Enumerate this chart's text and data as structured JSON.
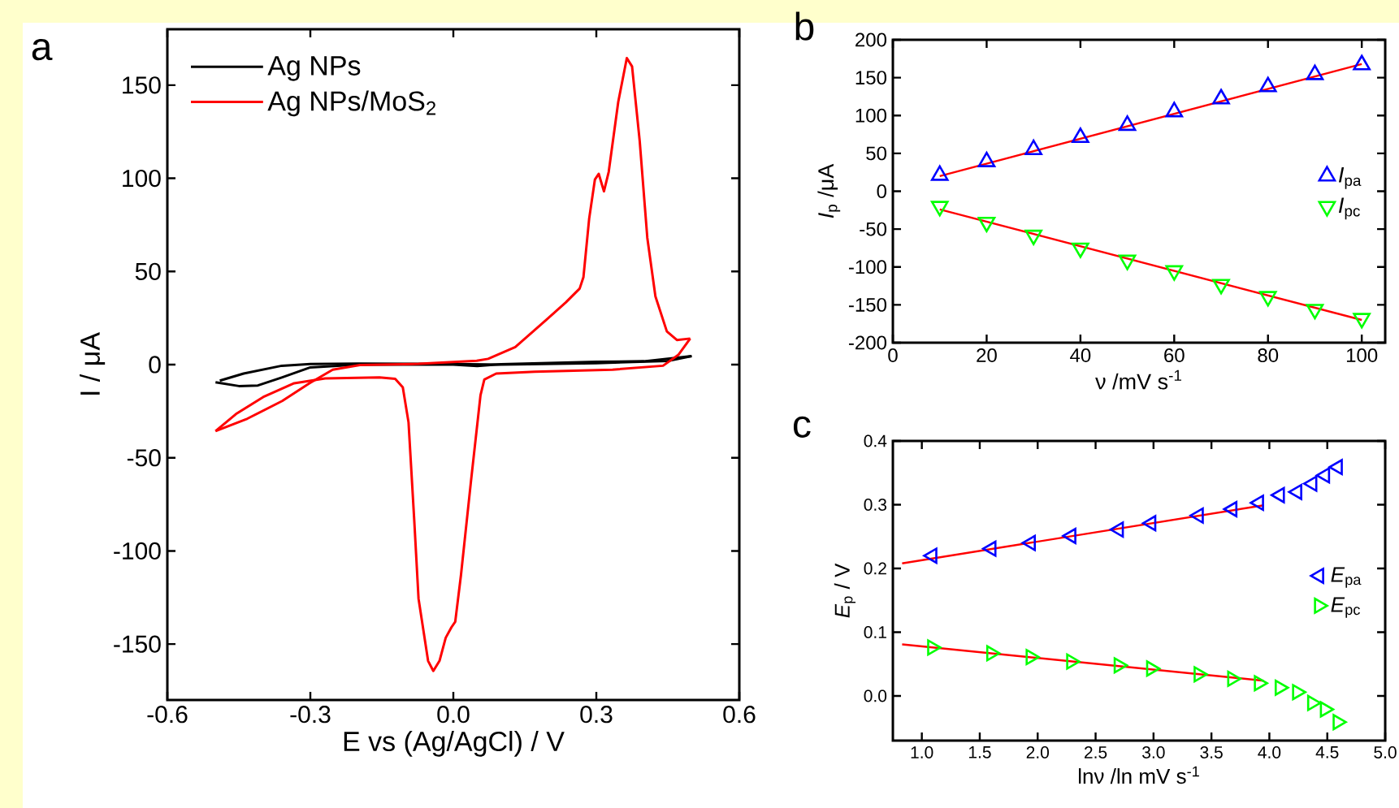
{
  "chart_data": [
    {
      "type": "line",
      "title": "a",
      "xlabel": "E vs (Ag/AgCl) / V",
      "ylabel": "I / μA",
      "legend": "top left",
      "xlim": [
        -0.6,
        0.6
      ],
      "ylim": [
        -180,
        180
      ],
      "xticks": [
        -0.6,
        -0.3,
        {
          "value": 0,
          "label": "0.0"
        },
        0.3,
        0.6
      ],
      "yticks": [
        -150,
        -100,
        -50,
        0,
        50,
        100,
        150
      ],
      "series": [
        {
          "name": "Ag NPs",
          "color": "#000000",
          "x": [
            -0.499,
            -0.45,
            -0.41,
            -0.36,
            -0.3,
            -0.2,
            0.0,
            0.05,
            0.1,
            0.3,
            0.4,
            0.5
          ],
          "values": [
            -9.5,
            -11.5,
            -11.2,
            -6.9,
            -1.5,
            0,
            0,
            -0.8,
            0.2,
            1.5,
            1.8,
            4.6
          ]
        },
        {
          "color": "#000000",
          "x": [
            0.5,
            0.45,
            0.3,
            0.1,
            0.0,
            -0.2,
            -0.3,
            -0.36,
            -0.44,
            -0.49
          ],
          "values": [
            4.6,
            2.0,
            0.8,
            0,
            0.3,
            0.5,
            0.3,
            -0.6,
            -4.8,
            -8.6
          ]
        },
        {
          "name": "Ag NPs/MoS$_{2}$",
          "color": "#ff0000",
          "x": [
            -0.499,
            -0.432,
            -0.359,
            -0.302,
            -0.253,
            -0.196,
            -0.073,
            0.049,
            0.073,
            0.13,
            0.195,
            0.236,
            0.265,
            0.273,
            0.285,
            0.297,
            0.305,
            0.316,
            0.326,
            0.346,
            0.364,
            0.375,
            0.391,
            0.407,
            0.424,
            0.448,
            0.469,
            0.497
          ],
          "values": [
            -35.7,
            -29,
            -19.5,
            -10,
            -2.7,
            -0.2,
            0.4,
            2.1,
            3.1,
            9.4,
            24,
            33.4,
            40.8,
            47,
            78.4,
            99.3,
            102.4,
            93,
            103.5,
            141,
            164.5,
            160,
            120,
            68,
            36.6,
            17.8,
            13.2,
            14
          ]
        },
        {
          "color": "#ff0000",
          "x": [
            0.497,
            0.472,
            0.44,
            0.334,
            0.171,
            0.09,
            0.065,
            0.057,
            0.037,
            0.016,
            0.004,
            -0.004,
            -0.016,
            -0.029,
            -0.042,
            -0.053,
            -0.073,
            -0.082,
            -0.094,
            -0.106,
            -0.122,
            -0.155,
            -0.269,
            -0.334,
            -0.399,
            -0.456,
            -0.499
          ],
          "values": [
            14,
            5.2,
            -0.6,
            -2.7,
            -3.8,
            -4.8,
            -8,
            -16.4,
            -62.6,
            -113,
            -138,
            -141,
            -146.6,
            -159,
            -164.4,
            -159,
            -125.6,
            -83.6,
            -31,
            -12.2,
            -7.6,
            -6.9,
            -7.4,
            -10,
            -17.4,
            -26.5,
            -35.7
          ]
        }
      ]
    },
    {
      "type": "scatter",
      "title": "b",
      "xlabel": "ν /mV s$^{-1}$",
      "ylabel": "*I*$_{p}$ /μA",
      "legend": "right",
      "xlim": [
        0,
        105
      ],
      "ylim": [
        -200,
        200
      ],
      "xticks": [
        0,
        20,
        40,
        60,
        80,
        100
      ],
      "yticks": [
        -200,
        -150,
        -100,
        -50,
        0,
        50,
        100,
        150,
        200
      ],
      "x": [
        10,
        20,
        30,
        40,
        50,
        60,
        70,
        80,
        90,
        100
      ],
      "series": [
        {
          "name": "*I*$_{pa}$",
          "color": "#0000ff",
          "marker": "triangle",
          "values": [
            21,
            39,
            55,
            71,
            87,
            105,
            122,
            138,
            154,
            167
          ]
        },
        {
          "name": "*I*$_{pc}$",
          "color": "#00ff00",
          "marker": "triangle",
          "values": [
            -20,
            -41,
            -58,
            -75,
            -91,
            -105,
            -123,
            -139,
            -156,
            -168
          ]
        },
        {
          "type": "line",
          "color": "#ff0000",
          "x": [
            10,
            100
          ],
          "values": [
            20,
            168
          ]
        },
        {
          "type": "line",
          "color": "#ff0000",
          "x": [
            10,
            100
          ],
          "values": [
            -24,
            -170
          ]
        }
      ]
    },
    {
      "type": "scatter",
      "title": "c",
      "xlabel": "lnν /ln mV s$^{-1}$",
      "ylabel": "*E*$_{p}$ / V",
      "legend": "right",
      "xlim": [
        0.75,
        5.0
      ],
      "ylim": [
        -0.07,
        0.4
      ],
      "xticks": [
        {
          "value": 1,
          "label": "1.0"
        },
        1.5,
        {
          "value": 2,
          "label": "2.0"
        },
        2.5,
        {
          "value": 3,
          "label": "3.0"
        },
        3.5,
        {
          "value": 4,
          "label": "4.0"
        },
        4.5,
        {
          "value": 5,
          "label": "5.0"
        }
      ],
      "yticks": [
        {
          "value": 0,
          "label": "0.0"
        },
        0.1,
        0.2,
        0.3,
        0.4
      ],
      "x": [
        1.09,
        1.6,
        1.94,
        2.29,
        2.7,
        2.98,
        3.39,
        3.68,
        3.91,
        4.09,
        4.24,
        4.37,
        4.48,
        4.59
      ],
      "series": [
        {
          "name": "*E*$_{pa}$",
          "color": "#0000ff",
          "marker": "triangle",
          "values": [
            0.22,
            0.231,
            0.24,
            0.251,
            0.261,
            0.271,
            0.283,
            0.293,
            0.303,
            0.315,
            0.32,
            0.333,
            0.346,
            0.359
          ]
        },
        {
          "name": "*E*$_{pc}$",
          "color": "#00ff00",
          "marker": "triangle",
          "values": [
            0.076,
            0.067,
            0.061,
            0.054,
            0.048,
            0.043,
            0.034,
            0.027,
            0.02,
            0.013,
            0.006,
            -0.011,
            -0.021,
            -0.041
          ]
        },
        {
          "type": "line",
          "color": "#ff0000",
          "x": [
            0.83,
            3.95
          ],
          "values": [
            0.208,
            0.299
          ]
        },
        {
          "type": "line",
          "color": "#ff0000",
          "x": [
            0.83,
            3.95
          ],
          "values": [
            0.081,
            0.024
          ]
        }
      ]
    }
  ]
}
